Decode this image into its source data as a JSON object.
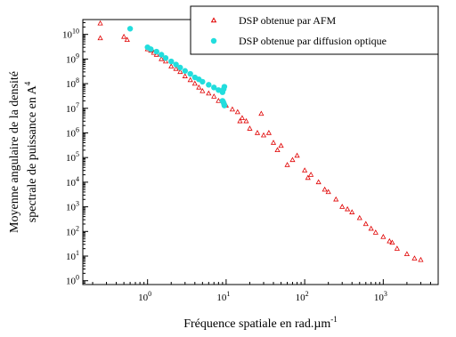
{
  "chart_data": {
    "type": "scatter",
    "x_scale": "log",
    "y_scale": "log",
    "xlim": [
      0.15,
      5000
    ],
    "ylim": [
      0.7,
      40000000000.0
    ],
    "x_ticks": [
      {
        "value": 1,
        "label": "10",
        "exp": "0"
      },
      {
        "value": 10,
        "label": "10",
        "exp": "1"
      },
      {
        "value": 100,
        "label": "10",
        "exp": "2"
      },
      {
        "value": 1000,
        "label": "10",
        "exp": "3"
      }
    ],
    "y_ticks": [
      {
        "value": 1,
        "label": "10",
        "exp": "0"
      },
      {
        "value": 10,
        "label": "10",
        "exp": "1"
      },
      {
        "value": 100,
        "label": "10",
        "exp": "2"
      },
      {
        "value": 1000,
        "label": "10",
        "exp": "3"
      },
      {
        "value": 10000,
        "label": "10",
        "exp": "4"
      },
      {
        "value": 100000,
        "label": "10",
        "exp": "5"
      },
      {
        "value": 1000000,
        "label": "10",
        "exp": "6"
      },
      {
        "value": 10000000,
        "label": "10",
        "exp": "7"
      },
      {
        "value": 100000000,
        "label": "10",
        "exp": "8"
      },
      {
        "value": 1000000000,
        "label": "10",
        "exp": "9"
      },
      {
        "value": 10000000000,
        "label": "10",
        "exp": "10"
      }
    ],
    "xlabel": {
      "main": "Fréquence spatiale en rad.µm",
      "sup": "-1"
    },
    "ylabel_line1": "Moyenne angulaire de la densité",
    "ylabel_line2": {
      "main": "spectrale de puissance en A",
      "sup": "4"
    },
    "grid": false,
    "legend_position": "top-right",
    "series": [
      {
        "name": "DSP obtenue par AFM",
        "marker": "open-triangle",
        "color": "#e00000",
        "points": [
          [
            0.25,
            28000000000.0
          ],
          [
            0.25,
            7000000000.0
          ],
          [
            0.5,
            8000000000.0
          ],
          [
            0.55,
            6000000000.0
          ],
          [
            1.0,
            2500000000.0
          ],
          [
            1.1,
            2200000000.0
          ],
          [
            1.2,
            1800000000.0
          ],
          [
            1.3,
            1500000000.0
          ],
          [
            1.5,
            1000000000.0
          ],
          [
            1.7,
            800000000.0
          ],
          [
            2.0,
            500000000.0
          ],
          [
            2.3,
            400000000.0
          ],
          [
            2.6,
            300000000.0
          ],
          [
            3.0,
            200000000.0
          ],
          [
            3.5,
            140000000.0
          ],
          [
            4.0,
            100000000.0
          ],
          [
            4.5,
            70000000.0
          ],
          [
            5.0,
            50000000.0
          ],
          [
            6.0,
            40000000.0
          ],
          [
            7.0,
            30000000.0
          ],
          [
            8.0,
            20000000.0
          ],
          [
            10.0,
            13000000.0
          ],
          [
            12.0,
            9000000.0
          ],
          [
            14.0,
            7000000.0
          ],
          [
            15.0,
            3000000.0
          ],
          [
            16.0,
            4000000.0
          ],
          [
            18.0,
            3000000.0
          ],
          [
            20.0,
            1500000.0
          ],
          [
            25.0,
            1000000.0
          ],
          [
            28.0,
            6000000.0
          ],
          [
            30.0,
            800000.0
          ],
          [
            35.0,
            1000000.0
          ],
          [
            40.0,
            400000.0
          ],
          [
            45.0,
            200000.0
          ],
          [
            50.0,
            300000.0
          ],
          [
            60.0,
            50000.0
          ],
          [
            70.0,
            80000.0
          ],
          [
            80.0,
            120000.0
          ],
          [
            100.0,
            30000.0
          ],
          [
            110.0,
            15000.0
          ],
          [
            120.0,
            20000.0
          ],
          [
            150.0,
            10000.0
          ],
          [
            180.0,
            5000.0
          ],
          [
            200.0,
            4000.0
          ],
          [
            250.0,
            2000.0
          ],
          [
            300.0,
            1000.0
          ],
          [
            350.0,
            800
          ],
          [
            400.0,
            600
          ],
          [
            500.0,
            350
          ],
          [
            600.0,
            200
          ],
          [
            700.0,
            130
          ],
          [
            800.0,
            90
          ],
          [
            1000.0,
            60
          ],
          [
            1200.0,
            40
          ],
          [
            1300.0,
            35
          ],
          [
            1500.0,
            20
          ],
          [
            2000.0,
            12
          ],
          [
            2500.0,
            8
          ],
          [
            3000.0,
            7
          ]
        ]
      },
      {
        "name": "DSP obtenue par diffusion optique",
        "marker": "filled-circle",
        "color": "#22dddd",
        "points": [
          [
            0.6,
            17000000000.0
          ],
          [
            1.0,
            3000000000.0
          ],
          [
            1.1,
            2500000000.0
          ],
          [
            1.3,
            2000000000.0
          ],
          [
            1.5,
            1500000000.0
          ],
          [
            1.7,
            1100000000.0
          ],
          [
            2.0,
            800000000.0
          ],
          [
            2.3,
            600000000.0
          ],
          [
            2.6,
            450000000.0
          ],
          [
            3.0,
            330000000.0
          ],
          [
            3.5,
            250000000.0
          ],
          [
            4.0,
            180000000.0
          ],
          [
            4.5,
            150000000.0
          ],
          [
            5.0,
            120000000.0
          ],
          [
            6.0,
            90000000.0
          ],
          [
            7.0,
            70000000.0
          ],
          [
            8.0,
            55000000.0
          ],
          [
            9.0,
            45000000.0
          ],
          [
            9.3,
            60000000.0
          ],
          [
            9.5,
            75000000.0
          ],
          [
            9.0,
            20000000.0
          ],
          [
            9.2,
            18000000.0
          ],
          [
            9.4,
            15000000.0
          ],
          [
            9.5,
            13000000.0
          ]
        ]
      }
    ]
  }
}
